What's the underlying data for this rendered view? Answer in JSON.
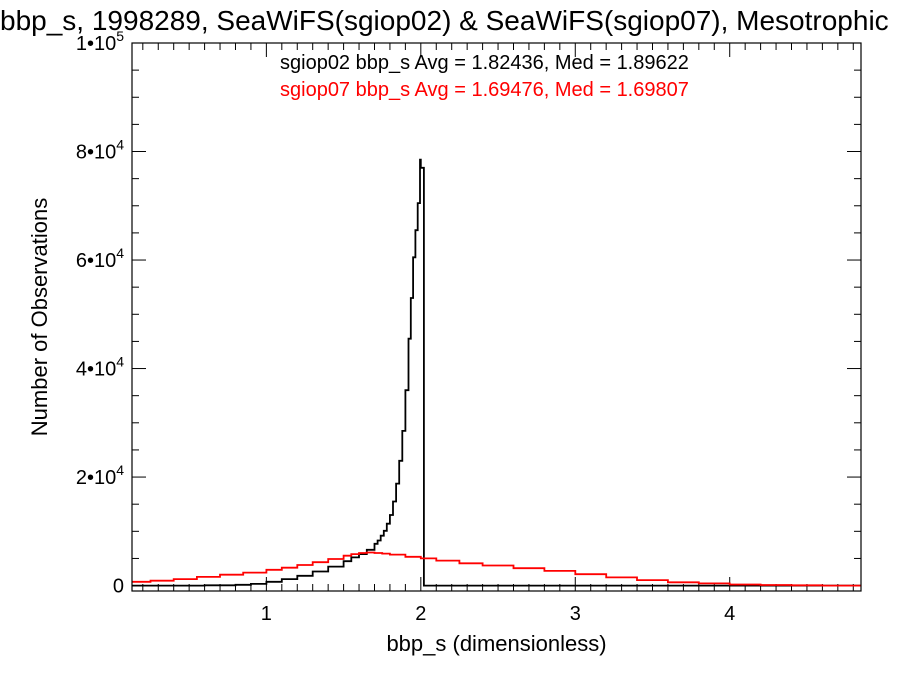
{
  "chart_data": {
    "type": "line",
    "title": "bbp_s, 1998289, SeaWiFS(sgiop02) & SeaWiFS(sgiop07), Mesotrophic",
    "xlabel": "bbp_s (dimensionless)",
    "ylabel": "Number of Observations",
    "xlim": [
      0.13,
      4.85
    ],
    "ylim": [
      -1000,
      100000
    ],
    "x_ticks": [
      {
        "value": 1,
        "label": "1"
      },
      {
        "value": 2,
        "label": "2"
      },
      {
        "value": 3,
        "label": "3"
      },
      {
        "value": 4,
        "label": "4"
      }
    ],
    "y_ticks": [
      {
        "value": 0,
        "mantissa": "0",
        "exponent": ""
      },
      {
        "value": 20000,
        "mantissa": "2•10",
        "exponent": "4"
      },
      {
        "value": 40000,
        "mantissa": "4•10",
        "exponent": "4"
      },
      {
        "value": 60000,
        "mantissa": "6•10",
        "exponent": "4"
      },
      {
        "value": 80000,
        "mantissa": "8•10",
        "exponent": "4"
      },
      {
        "value": 100000,
        "mantissa": "1•10",
        "exponent": "5"
      }
    ],
    "annotations": [
      {
        "text": "sgiop02 bbp_s Avg = 1.82436, Med = 1.89622",
        "color": "#000000"
      },
      {
        "text": "sgiop07 bbp_s Avg = 1.69476, Med = 1.69807",
        "color": "#ff0000"
      }
    ],
    "series": [
      {
        "color": "#000000",
        "style": "step",
        "x": [
          0.13,
          0.4,
          0.6,
          0.8,
          0.9,
          1.0,
          1.1,
          1.2,
          1.3,
          1.4,
          1.5,
          1.55,
          1.6,
          1.65,
          1.7,
          1.72,
          1.74,
          1.76,
          1.78,
          1.8,
          1.82,
          1.84,
          1.86,
          1.88,
          1.9,
          1.92,
          1.935,
          1.95,
          1.965,
          1.98,
          1.995,
          2.0,
          2.02,
          2.2,
          3.0,
          4.0,
          4.85
        ],
        "y": [
          0,
          0,
          50,
          150,
          300,
          700,
          1200,
          1800,
          2600,
          3500,
          4500,
          5200,
          5800,
          6600,
          7700,
          8300,
          9200,
          10100,
          11400,
          13000,
          15500,
          18800,
          23000,
          28500,
          36000,
          45500,
          53000,
          60500,
          65500,
          70500,
          78500,
          77000,
          0,
          0,
          0,
          0,
          0
        ]
      },
      {
        "color": "#ff0000",
        "style": "step",
        "x": [
          0.13,
          0.25,
          0.4,
          0.55,
          0.7,
          0.85,
          1.0,
          1.1,
          1.2,
          1.3,
          1.4,
          1.5,
          1.55,
          1.6,
          1.65,
          1.7,
          1.75,
          1.8,
          1.9,
          2.0,
          2.1,
          2.25,
          2.4,
          2.6,
          2.8,
          3.0,
          3.2,
          3.4,
          3.6,
          3.8,
          4.0,
          4.2,
          4.4,
          4.6,
          4.85
        ],
        "y": [
          700,
          900,
          1200,
          1600,
          2000,
          2400,
          2900,
          3300,
          3800,
          4300,
          4900,
          5500,
          5800,
          6000,
          6100,
          6000,
          5900,
          5700,
          5300,
          5000,
          4600,
          4100,
          3700,
          3200,
          2700,
          2100,
          1500,
          1000,
          600,
          400,
          200,
          100,
          50,
          0,
          0
        ]
      }
    ]
  }
}
